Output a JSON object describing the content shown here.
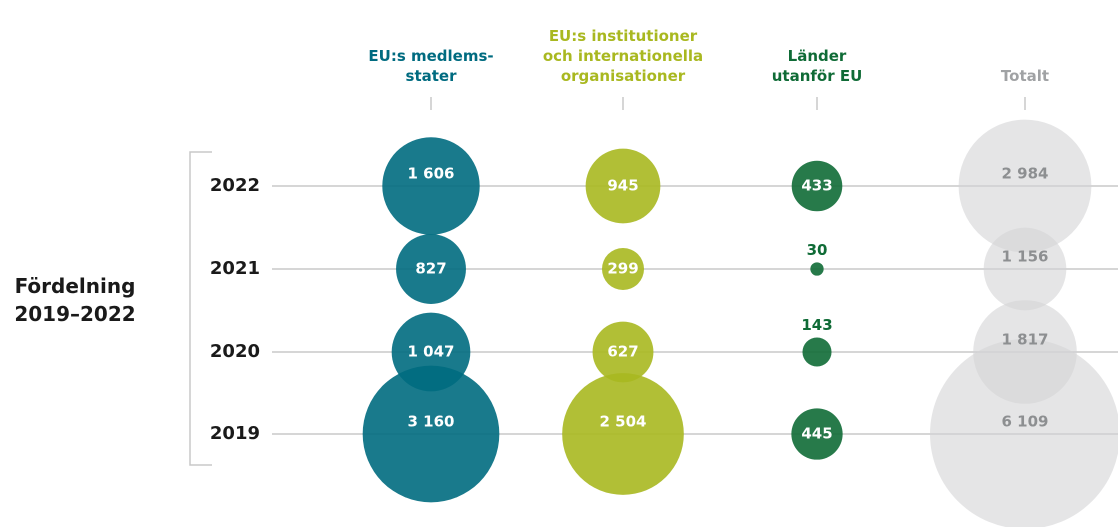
{
  "chart_data": {
    "type": "bubble",
    "y_label": "Fördelning\n2019–2022",
    "categories": [
      "2022",
      "2021",
      "2020",
      "2019"
    ],
    "series": [
      {
        "name": "EU:s medlems-\nstater",
        "color": "#006b80",
        "values": [
          1606,
          827,
          1047,
          3160
        ],
        "value_labels": [
          "1 606",
          "827",
          "1 047",
          "3 160"
        ]
      },
      {
        "name": "EU:s institutioner\noch internationella\norganisationer",
        "color": "#a9b820",
        "values": [
          945,
          299,
          627,
          2504
        ],
        "value_labels": [
          "945",
          "299",
          "627",
          "2 504"
        ]
      },
      {
        "name": "Länder\nutanför EU",
        "color": "#0f6b36",
        "values": [
          433,
          30,
          143,
          445
        ],
        "value_labels": [
          "433",
          "30",
          "143",
          "445"
        ]
      },
      {
        "name": "Totalt",
        "color": "#d3d4d6",
        "values": [
          2984,
          1156,
          1817,
          6109
        ],
        "value_labels": [
          "2 984",
          "1 156",
          "1 817",
          "6 109"
        ]
      }
    ]
  }
}
